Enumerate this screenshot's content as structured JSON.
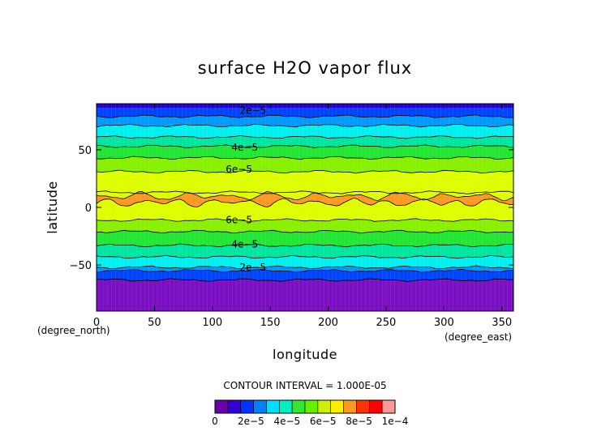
{
  "chart_data": {
    "type": "contour",
    "title": "surface H2O vapor flux",
    "xlabel": "longitude",
    "ylabel": "latitude",
    "x_unit": "(degree_east)",
    "y_unit": "(degree_north)",
    "xlim": [
      0,
      360
    ],
    "ylim": [
      -90,
      90
    ],
    "xticks": [
      "0",
      "50",
      "100",
      "150",
      "200",
      "250",
      "300",
      "350"
    ],
    "yticks": [
      "50",
      "0",
      "−50"
    ],
    "contour_interval_text": "CONTOUR INTERVAL = 1.000E-05",
    "contour_labels": [
      {
        "text": "2e−5",
        "lon": 135,
        "lat": 84
      },
      {
        "text": "4e−5",
        "lon": 128,
        "lat": 52
      },
      {
        "text": "6e−5",
        "lon": 123,
        "lat": 33
      },
      {
        "text": "6e−5",
        "lon": 123,
        "lat": -11
      },
      {
        "text": "4e−5",
        "lon": 128,
        "lat": -32
      },
      {
        "text": "2e−5",
        "lon": 135,
        "lat": -52
      }
    ],
    "bands": [
      {
        "lat_from": 90,
        "lat_to": 86,
        "level": 1
      },
      {
        "lat_from": 86,
        "lat_to": 79,
        "level": 2
      },
      {
        "lat_from": 79,
        "lat_to": 71,
        "level": 3
      },
      {
        "lat_from": 71,
        "lat_to": 61,
        "level": 4
      },
      {
        "lat_from": 61,
        "lat_to": 53,
        "level": 5
      },
      {
        "lat_from": 53,
        "lat_to": 43,
        "level": 6
      },
      {
        "lat_from": 43,
        "lat_to": 31,
        "level": 7
      },
      {
        "lat_from": 31,
        "lat_to": 13,
        "level": 8
      },
      {
        "lat_from": 13,
        "lat_to": -11,
        "level": 8
      },
      {
        "lat_from": -11,
        "lat_to": -21,
        "level": 7
      },
      {
        "lat_from": -21,
        "lat_to": -33,
        "level": 6
      },
      {
        "lat_from": -33,
        "lat_to": -43,
        "level": 5
      },
      {
        "lat_from": -43,
        "lat_to": -52,
        "level": 4
      },
      {
        "lat_from": -52,
        "lat_to": -55,
        "level": 3
      },
      {
        "lat_from": -55,
        "lat_to": -63,
        "level": 2
      },
      {
        "lat_from": -63,
        "lat_to": -90,
        "level": 0
      }
    ],
    "peak_band": {
      "lat_center": 7,
      "half_width": 5,
      "level": 9
    },
    "colorbar": {
      "colors": [
        "#6a00a8",
        "#3300d6",
        "#0033ff",
        "#0080ff",
        "#00ddff",
        "#00f0c0",
        "#33e633",
        "#66f000",
        "#ccf000",
        "#ffee00",
        "#ff9922",
        "#ff3300",
        "#ff0000",
        "#ff9999"
      ],
      "labels": [
        "0",
        "2e−5",
        "4e−5",
        "6e−5",
        "8e−5",
        "1e−4"
      ]
    },
    "level_colors": [
      "#7a10c2",
      "#2400d8",
      "#0044ff",
      "#0099ff",
      "#00f0f0",
      "#00e6a0",
      "#22e633",
      "#88f000",
      "#ddff00",
      "#ff9922"
    ]
  }
}
